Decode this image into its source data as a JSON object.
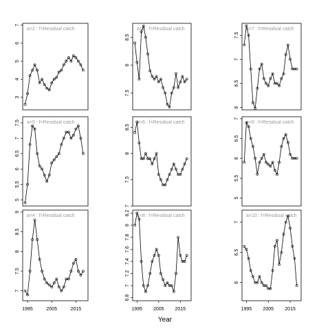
{
  "chart_data": [
    {
      "type": "line",
      "title": "a=2  :  f=Residual catch",
      "x": [
        1994,
        1995,
        1996,
        1997,
        1998,
        1999,
        2000,
        2001,
        2002,
        2003,
        2004,
        2005,
        2006,
        2007,
        2008,
        2009,
        2010,
        2011,
        2012,
        2013,
        2014,
        2015,
        2016,
        2017,
        2018
      ],
      "values": [
        2.6,
        3.2,
        4.2,
        4.5,
        4.8,
        4.5,
        3.8,
        4.0,
        3.7,
        3.5,
        3.4,
        3.8,
        4.0,
        4.1,
        4.4,
        4.5,
        4.8,
        5.0,
        5.2,
        5.0,
        5.3,
        5.2,
        5.0,
        4.8,
        4.5
      ],
      "xlim": [
        1993,
        2020
      ],
      "ylim": [
        2.3,
        7.1
      ],
      "yticks": [
        3,
        4,
        5,
        6,
        7
      ]
    },
    {
      "type": "line",
      "title": "a=3  :  f=Residual catch",
      "x": [
        1994,
        1995,
        1996,
        1997,
        1998,
        1999,
        2000,
        2001,
        2002,
        2003,
        2004,
        2005,
        2006,
        2007,
        2008,
        2009,
        2010,
        2011,
        2012,
        2013,
        2014,
        2015,
        2016,
        2017,
        2018
      ],
      "values": [
        8.4,
        8.05,
        7.75,
        8.6,
        8.7,
        8.5,
        8.2,
        7.9,
        7.8,
        7.75,
        7.8,
        7.7,
        7.75,
        7.6,
        7.5,
        7.3,
        7.25,
        7.5,
        7.6,
        7.85,
        7.6,
        7.7,
        7.8,
        7.7,
        7.75
      ],
      "xlim": [
        1993,
        2020
      ],
      "ylim": [
        7.2,
        8.75
      ],
      "yticks": [
        7.5,
        8.0,
        8.5
      ]
    },
    {
      "type": "line",
      "title": "a=7  :  f=Residual catch",
      "x": [
        1994,
        1995,
        1996,
        1997,
        1998,
        1999,
        2000,
        2001,
        2002,
        2003,
        2004,
        2005,
        2006,
        2007,
        2008,
        2009,
        2010,
        2011,
        2012,
        2013,
        2014,
        2015,
        2016,
        2017,
        2018
      ],
      "values": [
        7.3,
        7.7,
        7.5,
        6.8,
        6.1,
        5.98,
        6.4,
        6.8,
        6.9,
        6.6,
        6.5,
        6.45,
        6.6,
        6.7,
        6.5,
        6.5,
        6.45,
        6.6,
        6.7,
        7.1,
        7.3,
        7.0,
        6.8,
        6.8,
        6.8
      ],
      "xlim": [
        1993,
        2020
      ],
      "ylim": [
        5.95,
        7.75
      ],
      "yticks": [
        6.0,
        6.5,
        7.0,
        7.5
      ]
    },
    {
      "type": "line",
      "title": "a=5  :  f=Residual catch",
      "x": [
        1994,
        1995,
        1996,
        1997,
        1998,
        1999,
        2000,
        2001,
        2002,
        2003,
        2004,
        2005,
        2006,
        2007,
        2008,
        2009,
        2010,
        2011,
        2012,
        2013,
        2014,
        2015,
        2016,
        2017,
        2018
      ],
      "values": [
        4.9,
        5.5,
        6.8,
        7.4,
        7.3,
        6.5,
        6.1,
        6.0,
        5.8,
        5.6,
        5.8,
        6.2,
        6.3,
        6.4,
        6.5,
        6.8,
        7.0,
        7.2,
        7.2,
        7.0,
        7.1,
        7.3,
        7.4,
        7.0,
        6.5
      ],
      "xlim": [
        1993,
        2020
      ],
      "ylim": [
        4.8,
        7.7
      ],
      "yticks": [
        5.0,
        5.5,
        6.0,
        6.5,
        7.0,
        7.5
      ]
    },
    {
      "type": "line",
      "title": "a=6  :  f=Residual catch",
      "x": [
        1994,
        1995,
        1996,
        1997,
        1998,
        1999,
        2000,
        2001,
        2002,
        2003,
        2004,
        2005,
        2006,
        2007,
        2008,
        2009,
        2010,
        2011,
        2012,
        2013,
        2014,
        2015,
        2016,
        2017,
        2018
      ],
      "values": [
        8.4,
        8.6,
        8.2,
        7.9,
        7.9,
        8.0,
        7.9,
        7.9,
        7.8,
        7.9,
        8.0,
        7.6,
        7.5,
        7.4,
        7.4,
        7.5,
        7.6,
        7.7,
        7.8,
        7.7,
        7.6,
        7.6,
        7.7,
        7.8,
        7.9
      ],
      "xlim": [
        1993,
        2020
      ],
      "ylim": [
        7.0,
        8.7
      ],
      "yticks": [
        7.0,
        7.5,
        8.0,
        8.5
      ]
    },
    {
      "type": "line",
      "title": "a=9  :  f=Residual catch",
      "x": [
        1994,
        1995,
        1996,
        1997,
        1998,
        1999,
        2000,
        2001,
        2002,
        2003,
        2004,
        2005,
        2006,
        2007,
        2008,
        2009,
        2010,
        2011,
        2012,
        2013,
        2014,
        2015,
        2016,
        2017,
        2018
      ],
      "values": [
        5.9,
        6.9,
        6.8,
        6.5,
        6.3,
        6.0,
        5.6,
        5.9,
        6.0,
        6.1,
        5.9,
        5.85,
        5.8,
        5.9,
        5.7,
        5.6,
        5.9,
        6.3,
        6.5,
        6.6,
        6.4,
        6.1,
        6.0,
        6.0,
        6.0
      ],
      "xlim": [
        1993,
        2020
      ],
      "ylim": [
        4.8,
        7.05
      ],
      "yticks": [
        5.0,
        5.5,
        6.0,
        6.5,
        7.0
      ]
    },
    {
      "type": "line",
      "title": "a=4  :  f=Residual catch",
      "x": [
        1994,
        1995,
        1996,
        1997,
        1998,
        1999,
        2000,
        2001,
        2002,
        2003,
        2004,
        2005,
        2006,
        2007,
        2008,
        2009,
        2010,
        2011,
        2012,
        2013,
        2014,
        2015,
        2016,
        2017,
        2018
      ],
      "values": [
        7.0,
        6.9,
        7.5,
        8.3,
        8.8,
        8.3,
        7.8,
        7.5,
        7.3,
        7.2,
        7.15,
        7.1,
        7.2,
        7.3,
        7.1,
        7.0,
        7.1,
        7.3,
        7.3,
        7.5,
        7.7,
        7.8,
        7.5,
        7.4,
        7.5
      ],
      "xlim": [
        1993,
        2020
      ],
      "ylim": [
        6.75,
        9.05
      ],
      "yticks": [
        7.0,
        7.5,
        8.0,
        8.5,
        9.0
      ],
      "xticks": [
        1995,
        2005,
        2015
      ]
    },
    {
      "type": "line",
      "title": "a=8  :  f=Residual catch",
      "x": [
        1994,
        1995,
        1996,
        1997,
        1998,
        1999,
        2000,
        2001,
        2002,
        2003,
        2004,
        2005,
        2006,
        2007,
        2008,
        2009,
        2010,
        2011,
        2012,
        2013,
        2014,
        2015,
        2016,
        2017,
        2018
      ],
      "values": [
        8.0,
        8.2,
        8.1,
        7.4,
        7.0,
        6.9,
        7.0,
        7.2,
        7.4,
        7.5,
        7.6,
        7.5,
        7.2,
        7.1,
        7.0,
        7.05,
        7.0,
        7.0,
        6.9,
        7.2,
        7.8,
        7.5,
        7.4,
        7.4,
        7.5
      ],
      "xlim": [
        1993,
        2020
      ],
      "ylim": [
        6.75,
        8.25
      ],
      "yticks": [
        6.8,
        7.0,
        7.2,
        7.4,
        7.6,
        7.8,
        8.0,
        8.2
      ],
      "xticks": [
        1995,
        2005,
        2015
      ],
      "xlabel": "Year"
    },
    {
      "type": "line",
      "title": "a=10  :  f=Residual catch",
      "x": [
        1994,
        1995,
        1996,
        1997,
        1998,
        1999,
        2000,
        2001,
        2002,
        2003,
        2004,
        2005,
        2006,
        2007,
        2008,
        2009,
        2010,
        2011,
        2012,
        2013,
        2014,
        2015,
        2016,
        2017,
        2018
      ],
      "values": [
        6.6,
        6.55,
        6.4,
        6.2,
        6.1,
        6.0,
        6.0,
        6.1,
        6.0,
        5.95,
        5.95,
        5.9,
        5.9,
        6.2,
        6.6,
        6.7,
        6.3,
        6.5,
        6.8,
        7.0,
        7.1,
        6.9,
        6.6,
        6.4,
        5.95
      ],
      "xlim": [
        1993,
        2020
      ],
      "ylim": [
        5.7,
        7.2
      ],
      "yticks": [
        6.0,
        6.5,
        7.0
      ],
      "xticks": [
        1995,
        2005,
        2015
      ]
    }
  ]
}
